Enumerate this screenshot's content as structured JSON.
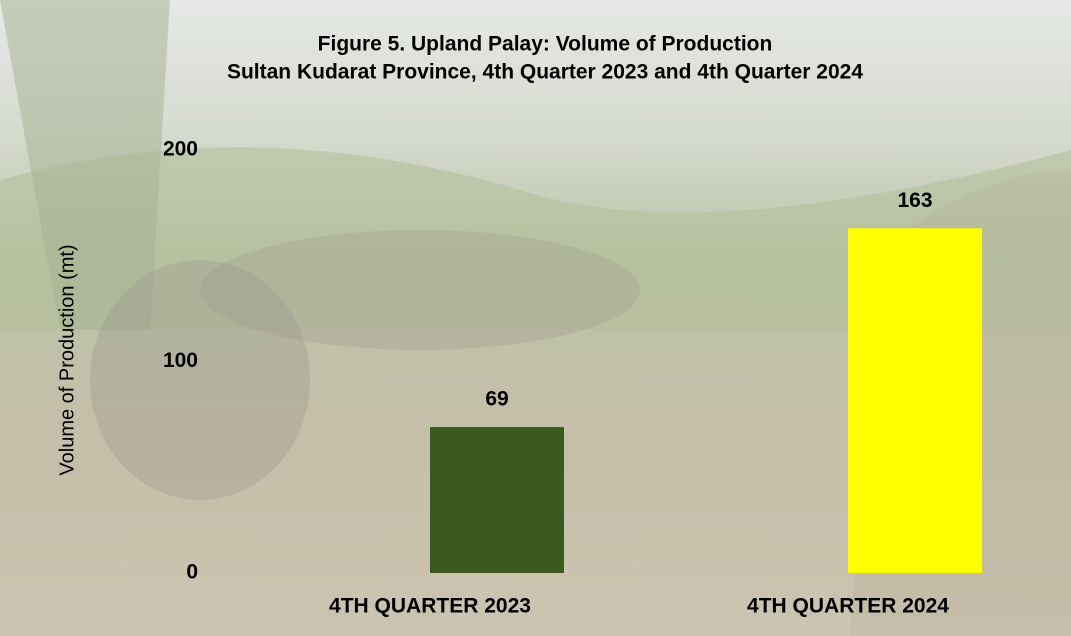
{
  "chart_data": {
    "type": "bar",
    "title": "Figure 5. Upland Palay: Volume of Production",
    "subtitle": "Sultan Kudarat Province, 4th Quarter 2023 and 4th Quarter 2024",
    "y_label": "Volume of Production (mt)",
    "categories": [
      "4TH QUARTER 2023",
      "4TH QUARTER 2024"
    ],
    "values": [
      69,
      163
    ],
    "colors": [
      "#3b5a22",
      "#ffff00"
    ],
    "ylim": [
      0,
      200
    ],
    "yticks": [
      0,
      100,
      200
    ],
    "grid": false
  }
}
